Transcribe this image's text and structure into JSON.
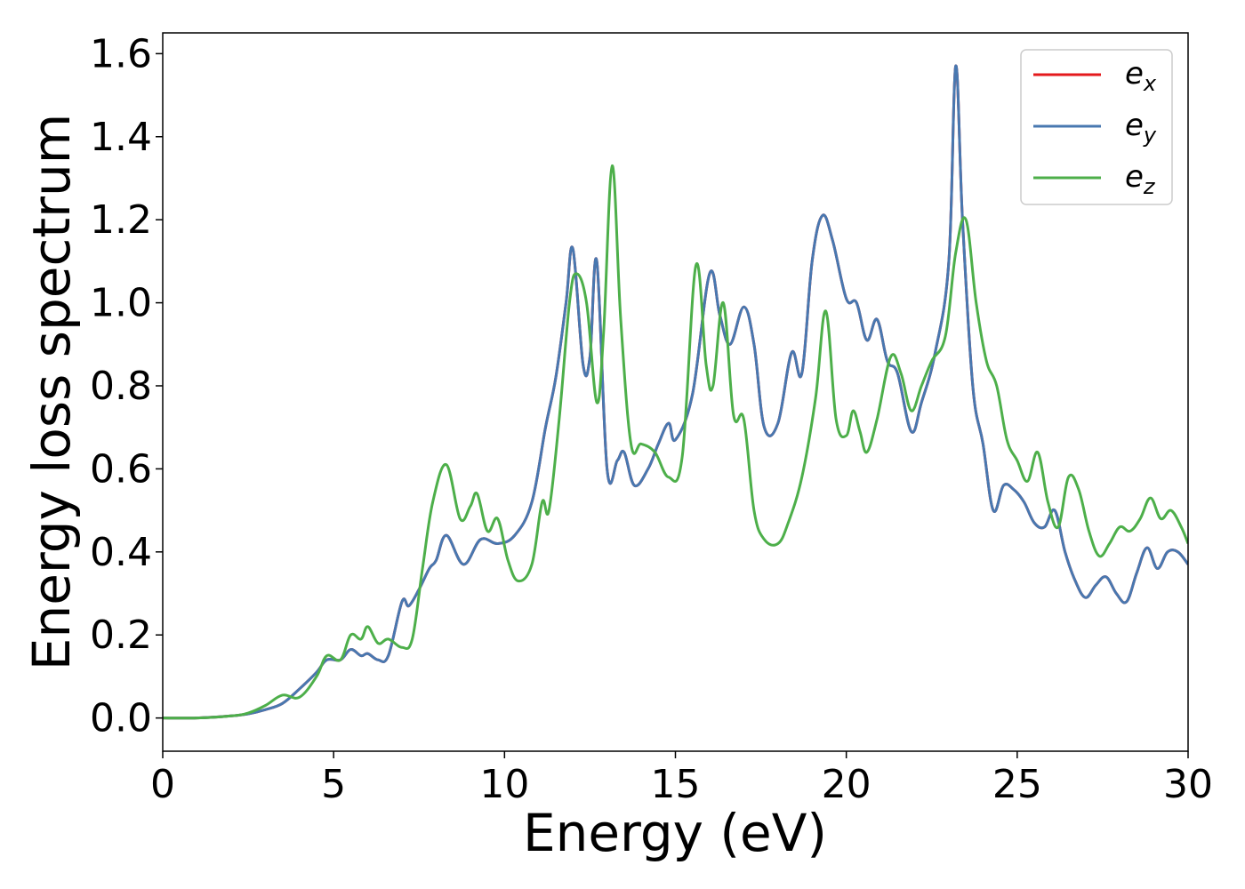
{
  "chart_data": {
    "type": "line",
    "title": "",
    "xlabel": "Energy (eV)",
    "ylabel": "Energy loss spectrum",
    "xlim": [
      0,
      30
    ],
    "ylim": [
      -0.08,
      1.65
    ],
    "xticks": [
      0,
      5,
      10,
      15,
      20,
      25,
      30
    ],
    "yticks": [
      0.0,
      0.2,
      0.4,
      0.6,
      0.8,
      1.0,
      1.2,
      1.4,
      1.6
    ],
    "xtick_labels": [
      "0",
      "5",
      "10",
      "15",
      "20",
      "25",
      "30"
    ],
    "ytick_labels": [
      "0.0",
      "0.2",
      "0.4",
      "0.6",
      "0.8",
      "1.0",
      "1.2",
      "1.4",
      "1.6"
    ],
    "grid": false,
    "legend_position": "top-right",
    "series": [
      {
        "name": "e_x",
        "legend_main": "e",
        "legend_sub": "x",
        "color": "#e41a1c",
        "x": [
          0,
          1,
          2,
          2.5,
          3,
          3.5,
          4,
          4.5,
          4.8,
          5.2,
          5.5,
          5.8,
          6.0,
          6.3,
          6.6,
          7.0,
          7.2,
          7.5,
          7.8,
          8.0,
          8.3,
          8.8,
          9.3,
          9.8,
          10.3,
          10.8,
          11.2,
          11.5,
          11.8,
          12.0,
          12.3,
          12.5,
          12.7,
          13.0,
          13.3,
          13.5,
          13.8,
          14.2,
          14.5,
          14.8,
          15.0,
          15.5,
          16.0,
          16.3,
          16.6,
          17.0,
          17.3,
          17.6,
          18.0,
          18.4,
          18.7,
          19.0,
          19.3,
          19.6,
          20.0,
          20.3,
          20.6,
          20.9,
          21.2,
          21.5,
          21.9,
          22.2,
          22.6,
          23.0,
          23.2,
          23.4,
          23.7,
          24.0,
          24.3,
          24.6,
          24.9,
          25.2,
          25.5,
          25.8,
          26.1,
          26.4,
          26.7,
          27.0,
          27.3,
          27.6,
          27.9,
          28.2,
          28.5,
          28.8,
          29.1,
          29.4,
          29.7,
          30
        ],
        "y": [
          0.0,
          0.0,
          0.005,
          0.01,
          0.02,
          0.035,
          0.07,
          0.11,
          0.14,
          0.14,
          0.165,
          0.15,
          0.155,
          0.14,
          0.15,
          0.28,
          0.27,
          0.31,
          0.36,
          0.38,
          0.44,
          0.37,
          0.43,
          0.42,
          0.44,
          0.52,
          0.7,
          0.82,
          1.0,
          1.13,
          0.85,
          0.87,
          1.1,
          0.6,
          0.62,
          0.64,
          0.56,
          0.6,
          0.66,
          0.71,
          0.67,
          0.78,
          1.07,
          0.97,
          0.9,
          0.99,
          0.9,
          0.7,
          0.71,
          0.88,
          0.83,
          1.1,
          1.21,
          1.15,
          1.01,
          1.0,
          0.91,
          0.96,
          0.86,
          0.83,
          0.69,
          0.76,
          0.88,
          1.1,
          1.57,
          1.2,
          0.8,
          0.66,
          0.5,
          0.56,
          0.55,
          0.52,
          0.47,
          0.46,
          0.5,
          0.4,
          0.33,
          0.29,
          0.32,
          0.34,
          0.3,
          0.28,
          0.35,
          0.41,
          0.36,
          0.4,
          0.4,
          0.37
        ]
      },
      {
        "name": "e_y",
        "legend_main": "e",
        "legend_sub": "y",
        "color": "#4878b0",
        "x": [
          0,
          1,
          2,
          2.5,
          3,
          3.5,
          4,
          4.5,
          4.8,
          5.2,
          5.5,
          5.8,
          6.0,
          6.3,
          6.6,
          7.0,
          7.2,
          7.5,
          7.8,
          8.0,
          8.3,
          8.8,
          9.3,
          9.8,
          10.3,
          10.8,
          11.2,
          11.5,
          11.8,
          12.0,
          12.3,
          12.5,
          12.7,
          13.0,
          13.3,
          13.5,
          13.8,
          14.2,
          14.5,
          14.8,
          15.0,
          15.5,
          16.0,
          16.3,
          16.6,
          17.0,
          17.3,
          17.6,
          18.0,
          18.4,
          18.7,
          19.0,
          19.3,
          19.6,
          20.0,
          20.3,
          20.6,
          20.9,
          21.2,
          21.5,
          21.9,
          22.2,
          22.6,
          23.0,
          23.2,
          23.4,
          23.7,
          24.0,
          24.3,
          24.6,
          24.9,
          25.2,
          25.5,
          25.8,
          26.1,
          26.4,
          26.7,
          27.0,
          27.3,
          27.6,
          27.9,
          28.2,
          28.5,
          28.8,
          29.1,
          29.4,
          29.7,
          30
        ],
        "y": [
          0.0,
          0.0,
          0.005,
          0.01,
          0.02,
          0.035,
          0.07,
          0.11,
          0.14,
          0.14,
          0.165,
          0.15,
          0.155,
          0.14,
          0.15,
          0.28,
          0.27,
          0.31,
          0.36,
          0.38,
          0.44,
          0.37,
          0.43,
          0.42,
          0.44,
          0.52,
          0.7,
          0.82,
          1.0,
          1.13,
          0.85,
          0.87,
          1.1,
          0.6,
          0.62,
          0.64,
          0.56,
          0.6,
          0.66,
          0.71,
          0.67,
          0.78,
          1.07,
          0.97,
          0.9,
          0.99,
          0.9,
          0.7,
          0.71,
          0.88,
          0.83,
          1.1,
          1.21,
          1.15,
          1.01,
          1.0,
          0.91,
          0.96,
          0.86,
          0.83,
          0.69,
          0.76,
          0.88,
          1.1,
          1.57,
          1.2,
          0.8,
          0.66,
          0.5,
          0.56,
          0.55,
          0.52,
          0.47,
          0.46,
          0.5,
          0.4,
          0.33,
          0.29,
          0.32,
          0.34,
          0.3,
          0.28,
          0.35,
          0.41,
          0.36,
          0.4,
          0.4,
          0.37
        ]
      },
      {
        "name": "e_z",
        "legend_main": "e",
        "legend_sub": "z",
        "color": "#4daf4a",
        "x": [
          0,
          1,
          2,
          2.5,
          3,
          3.5,
          4,
          4.5,
          4.8,
          5.2,
          5.5,
          5.8,
          6.0,
          6.3,
          6.6,
          7.0,
          7.3,
          7.6,
          7.9,
          8.3,
          8.7,
          9.0,
          9.2,
          9.5,
          9.8,
          10.1,
          10.4,
          10.8,
          11.1,
          11.3,
          11.6,
          11.9,
          12.1,
          12.4,
          12.7,
          12.9,
          13.15,
          13.4,
          13.7,
          14.0,
          14.4,
          14.8,
          15.2,
          15.6,
          15.9,
          16.1,
          16.4,
          16.7,
          17.0,
          17.3,
          17.6,
          18.0,
          18.3,
          18.7,
          19.1,
          19.4,
          19.7,
          20.0,
          20.2,
          20.4,
          20.6,
          20.9,
          21.3,
          21.6,
          21.9,
          22.2,
          22.5,
          22.9,
          23.2,
          23.5,
          23.8,
          24.1,
          24.4,
          24.7,
          25.0,
          25.3,
          25.6,
          25.9,
          26.2,
          26.5,
          26.8,
          27.1,
          27.4,
          27.7,
          28.0,
          28.3,
          28.6,
          28.9,
          29.2,
          29.5,
          29.8,
          30
        ],
        "y": [
          0.0,
          0.0,
          0.005,
          0.012,
          0.03,
          0.055,
          0.05,
          0.1,
          0.15,
          0.14,
          0.2,
          0.19,
          0.22,
          0.18,
          0.19,
          0.17,
          0.19,
          0.36,
          0.52,
          0.61,
          0.48,
          0.51,
          0.54,
          0.45,
          0.48,
          0.38,
          0.33,
          0.37,
          0.52,
          0.5,
          0.72,
          1.0,
          1.07,
          1.0,
          0.76,
          0.93,
          1.33,
          0.96,
          0.66,
          0.66,
          0.64,
          0.58,
          0.63,
          1.09,
          0.85,
          0.8,
          1.0,
          0.73,
          0.72,
          0.5,
          0.43,
          0.42,
          0.47,
          0.58,
          0.77,
          0.98,
          0.72,
          0.68,
          0.74,
          0.69,
          0.64,
          0.72,
          0.87,
          0.83,
          0.74,
          0.8,
          0.86,
          0.92,
          1.12,
          1.2,
          1.0,
          0.86,
          0.8,
          0.67,
          0.62,
          0.57,
          0.64,
          0.52,
          0.46,
          0.58,
          0.55,
          0.45,
          0.39,
          0.42,
          0.46,
          0.45,
          0.48,
          0.53,
          0.48,
          0.5,
          0.46,
          0.42
        ]
      }
    ]
  }
}
